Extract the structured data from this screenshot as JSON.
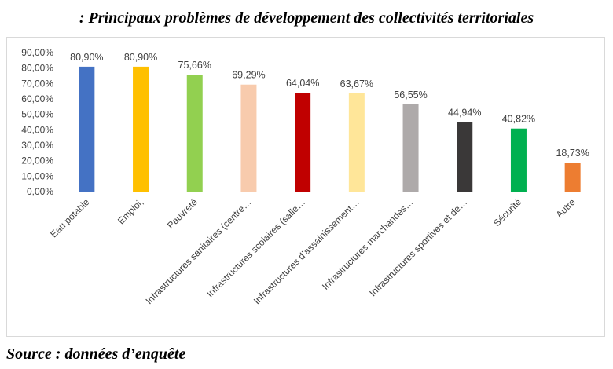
{
  "title": ": Principaux problèmes de développement des collectivités territoriales",
  "source": "Source : données d’enquête",
  "chart_data": {
    "type": "bar",
    "title": "",
    "xlabel": "",
    "ylabel": "",
    "ylim": [
      0,
      90
    ],
    "yticks": [
      "0,00%",
      "10,00%",
      "20,00%",
      "30,00%",
      "40,00%",
      "50,00%",
      "60,00%",
      "70,00%",
      "80,00%",
      "90,00%"
    ],
    "grid": false,
    "categories": [
      "Eau potable",
      "Emploi,",
      "Pauvreté",
      "Infrastructures sanitaires (centre…",
      "Infrastructures scolaires (salle…",
      "Infrastructures d’assainissement…",
      "Infrastructures marchandes…",
      "Infrastructures sportives et de…",
      "Sécurité",
      "Autre"
    ],
    "values": [
      80.9,
      80.9,
      75.66,
      69.29,
      64.04,
      63.67,
      56.55,
      44.94,
      40.82,
      18.73
    ],
    "data_labels": [
      "80,90%",
      "80,90%",
      "75,66%",
      "69,29%",
      "64,04%",
      "63,67%",
      "56,55%",
      "44,94%",
      "40,82%",
      "18,73%"
    ],
    "colors": [
      "#4472c4",
      "#ffc000",
      "#92d050",
      "#f8cbad",
      "#c00000",
      "#ffe699",
      "#aeaaaa",
      "#3a3838",
      "#00b050",
      "#ed7d31"
    ]
  }
}
